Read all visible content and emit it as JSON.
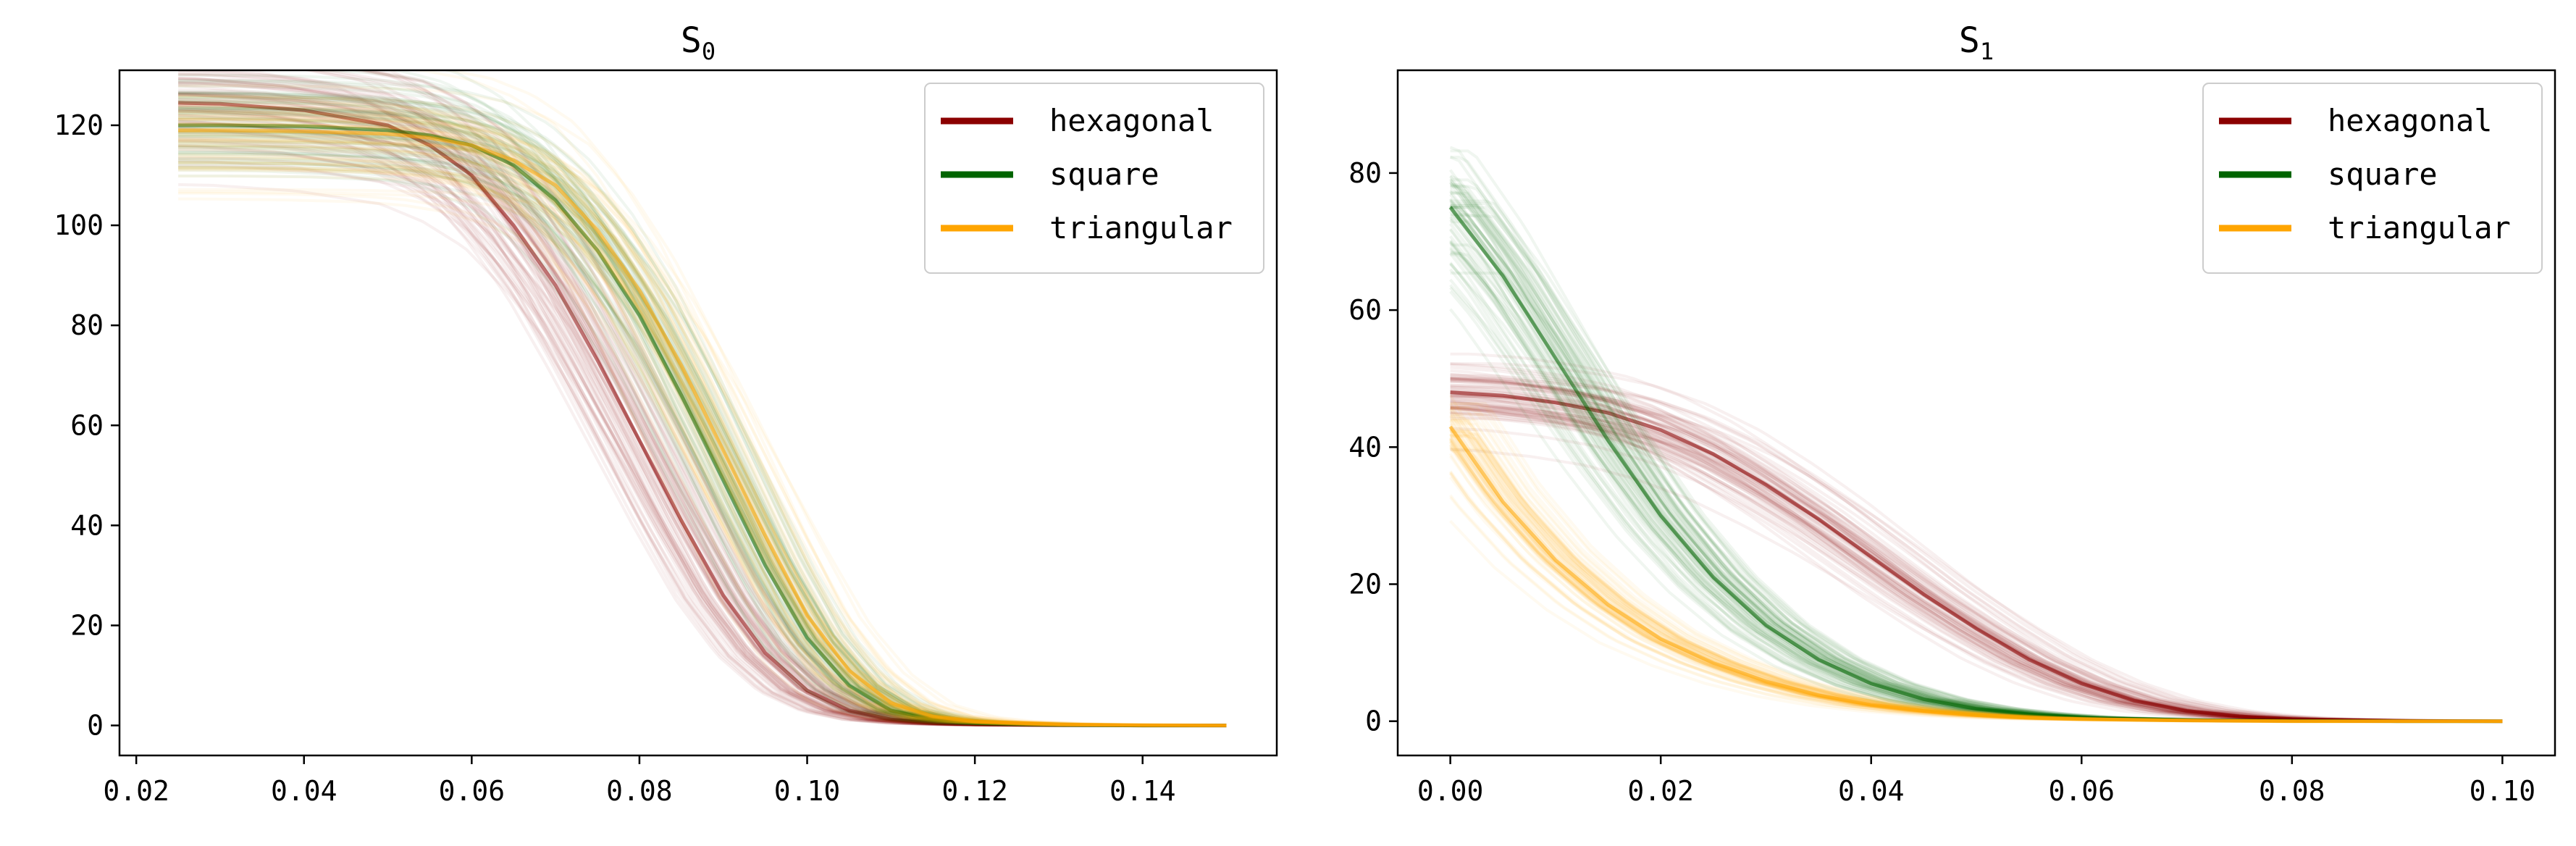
{
  "figure": {
    "panels": [
      {
        "title": "S",
        "title_subscript": "0"
      },
      {
        "title": "S",
        "title_subscript": "1"
      }
    ]
  },
  "colors": {
    "hexagonal": "#8b0000",
    "square": "#006400",
    "triangular": "#ffa500"
  },
  "chart_data": [
    {
      "type": "line",
      "title": "S₀",
      "xlabel": "",
      "ylabel": "",
      "xlim": [
        0.018,
        0.156
      ],
      "ylim": [
        -6,
        131
      ],
      "x_ticks": [
        0.02,
        0.04,
        0.06,
        0.08,
        0.1,
        0.12,
        0.14
      ],
      "x_tick_labels": [
        "0.02",
        "0.04",
        "0.06",
        "0.08",
        "0.10",
        "0.12",
        "0.14"
      ],
      "y_ticks": [
        0,
        20,
        40,
        60,
        80,
        100,
        120
      ],
      "y_tick_labels": [
        "0",
        "20",
        "40",
        "60",
        "80",
        "100",
        "120"
      ],
      "legend_position": "top-right",
      "grid": false,
      "note_spread": "many overlapping semi-transparent sample curves per series",
      "series": [
        {
          "name": "hexagonal",
          "color": "#8b0000",
          "x": [
            0.025,
            0.03,
            0.04,
            0.05,
            0.055,
            0.06,
            0.065,
            0.07,
            0.075,
            0.08,
            0.085,
            0.09,
            0.095,
            0.1,
            0.105,
            0.11,
            0.115,
            0.12,
            0.13,
            0.14,
            0.15
          ],
          "values": [
            124.5,
            124.3,
            123.0,
            120.0,
            116.0,
            110.0,
            100.0,
            88.0,
            73.0,
            57.0,
            41.0,
            26.0,
            14.5,
            7.0,
            3.0,
            1.2,
            0.5,
            0.2,
            0.05,
            0.0,
            0.0
          ]
        },
        {
          "name": "square",
          "color": "#006400",
          "x": [
            0.025,
            0.03,
            0.04,
            0.05,
            0.055,
            0.06,
            0.065,
            0.07,
            0.075,
            0.08,
            0.085,
            0.09,
            0.095,
            0.1,
            0.105,
            0.11,
            0.115,
            0.12,
            0.13,
            0.14,
            0.15
          ],
          "values": [
            120.0,
            120.0,
            119.8,
            119.0,
            118.0,
            116.0,
            112.0,
            105.0,
            95.0,
            82.0,
            66.0,
            49.0,
            32.0,
            17.5,
            8.0,
            3.0,
            1.2,
            0.5,
            0.1,
            0.0,
            0.0
          ]
        },
        {
          "name": "triangular",
          "color": "#ffa500",
          "x": [
            0.025,
            0.03,
            0.04,
            0.05,
            0.055,
            0.06,
            0.065,
            0.07,
            0.075,
            0.08,
            0.085,
            0.09,
            0.095,
            0.1,
            0.105,
            0.11,
            0.115,
            0.12,
            0.13,
            0.14,
            0.15
          ],
          "values": [
            119.0,
            119.0,
            118.8,
            118.3,
            117.5,
            116.0,
            113.0,
            108.0,
            99.0,
            87.0,
            72.0,
            55.0,
            38.0,
            22.0,
            11.0,
            4.5,
            1.8,
            0.8,
            0.2,
            0.05,
            0.0
          ]
        }
      ]
    },
    {
      "type": "line",
      "title": "S₁",
      "xlabel": "",
      "ylabel": "",
      "xlim": [
        -0.005,
        0.105
      ],
      "ylim": [
        -5,
        95
      ],
      "x_ticks": [
        0.0,
        0.02,
        0.04,
        0.06,
        0.08,
        0.1
      ],
      "x_tick_labels": [
        "0.00",
        "0.02",
        "0.04",
        "0.06",
        "0.08",
        "0.10"
      ],
      "y_ticks": [
        0,
        20,
        40,
        60,
        80
      ],
      "y_tick_labels": [
        "0",
        "20",
        "40",
        "60",
        "80"
      ],
      "legend_position": "top-right",
      "grid": false,
      "note_spread": "many overlapping semi-transparent sample curves per series",
      "series": [
        {
          "name": "hexagonal",
          "color": "#8b0000",
          "x": [
            0.0,
            0.005,
            0.01,
            0.015,
            0.02,
            0.025,
            0.03,
            0.035,
            0.04,
            0.045,
            0.05,
            0.055,
            0.06,
            0.065,
            0.07,
            0.075,
            0.08,
            0.09,
            0.1
          ],
          "values": [
            48.0,
            47.5,
            46.5,
            45.0,
            42.5,
            39.0,
            34.5,
            29.5,
            24.0,
            18.5,
            13.5,
            9.0,
            5.5,
            3.0,
            1.5,
            0.7,
            0.3,
            0.05,
            0.0
          ]
        },
        {
          "name": "square",
          "color": "#006400",
          "x": [
            0.0,
            0.005,
            0.01,
            0.015,
            0.02,
            0.025,
            0.03,
            0.035,
            0.04,
            0.045,
            0.05,
            0.055,
            0.06,
            0.07,
            0.08,
            0.09,
            0.1
          ],
          "values": [
            75.0,
            65.0,
            53.0,
            41.0,
            30.0,
            21.0,
            14.0,
            9.0,
            5.5,
            3.2,
            1.8,
            1.0,
            0.5,
            0.15,
            0.05,
            0.0,
            0.0
          ]
        },
        {
          "name": "triangular",
          "color": "#ffa500",
          "x": [
            0.0,
            0.005,
            0.01,
            0.015,
            0.02,
            0.025,
            0.03,
            0.035,
            0.04,
            0.045,
            0.05,
            0.055,
            0.06,
            0.07,
            0.08,
            0.09,
            0.1
          ],
          "values": [
            43.0,
            32.0,
            23.5,
            17.0,
            12.0,
            8.5,
            5.8,
            3.8,
            2.4,
            1.5,
            0.9,
            0.5,
            0.3,
            0.1,
            0.0,
            0.0,
            0.0
          ]
        }
      ]
    }
  ]
}
